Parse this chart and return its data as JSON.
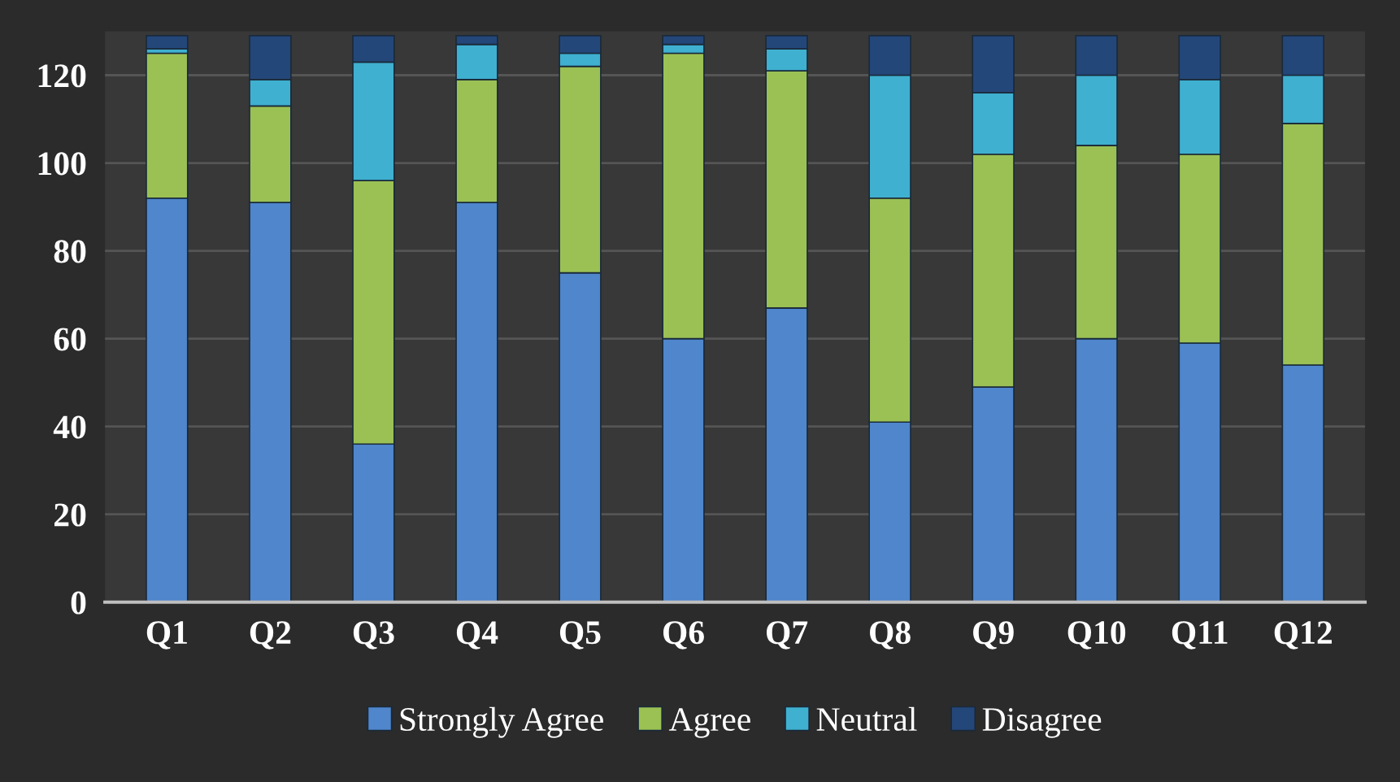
{
  "chart_data": {
    "type": "bar",
    "stacked": true,
    "categories": [
      "Q1",
      "Q2",
      "Q3",
      "Q4",
      "Q5",
      "Q6",
      "Q7",
      "Q8",
      "Q9",
      "Q10",
      "Q11",
      "Q12"
    ],
    "series": [
      {
        "name": "Strongly Agree",
        "color": "#4f86cc",
        "values": [
          92,
          91,
          36,
          91,
          75,
          60,
          67,
          41,
          49,
          60,
          59,
          54
        ]
      },
      {
        "name": "Agree",
        "color": "#9bc154",
        "values": [
          33,
          22,
          60,
          28,
          47,
          65,
          54,
          51,
          53,
          44,
          43,
          55
        ]
      },
      {
        "name": "Neutral",
        "color": "#3fb0d0",
        "values": [
          1,
          6,
          27,
          8,
          3,
          2,
          5,
          28,
          14,
          16,
          17,
          11
        ]
      },
      {
        "name": "Disagree",
        "color": "#24477a",
        "values": [
          3,
          10,
          6,
          2,
          4,
          2,
          3,
          9,
          13,
          9,
          10,
          9
        ]
      }
    ],
    "ylim": [
      0,
      130
    ],
    "yticks": [
      0,
      20,
      40,
      60,
      80,
      100,
      120
    ],
    "grid": "y",
    "legend": "bottom"
  }
}
